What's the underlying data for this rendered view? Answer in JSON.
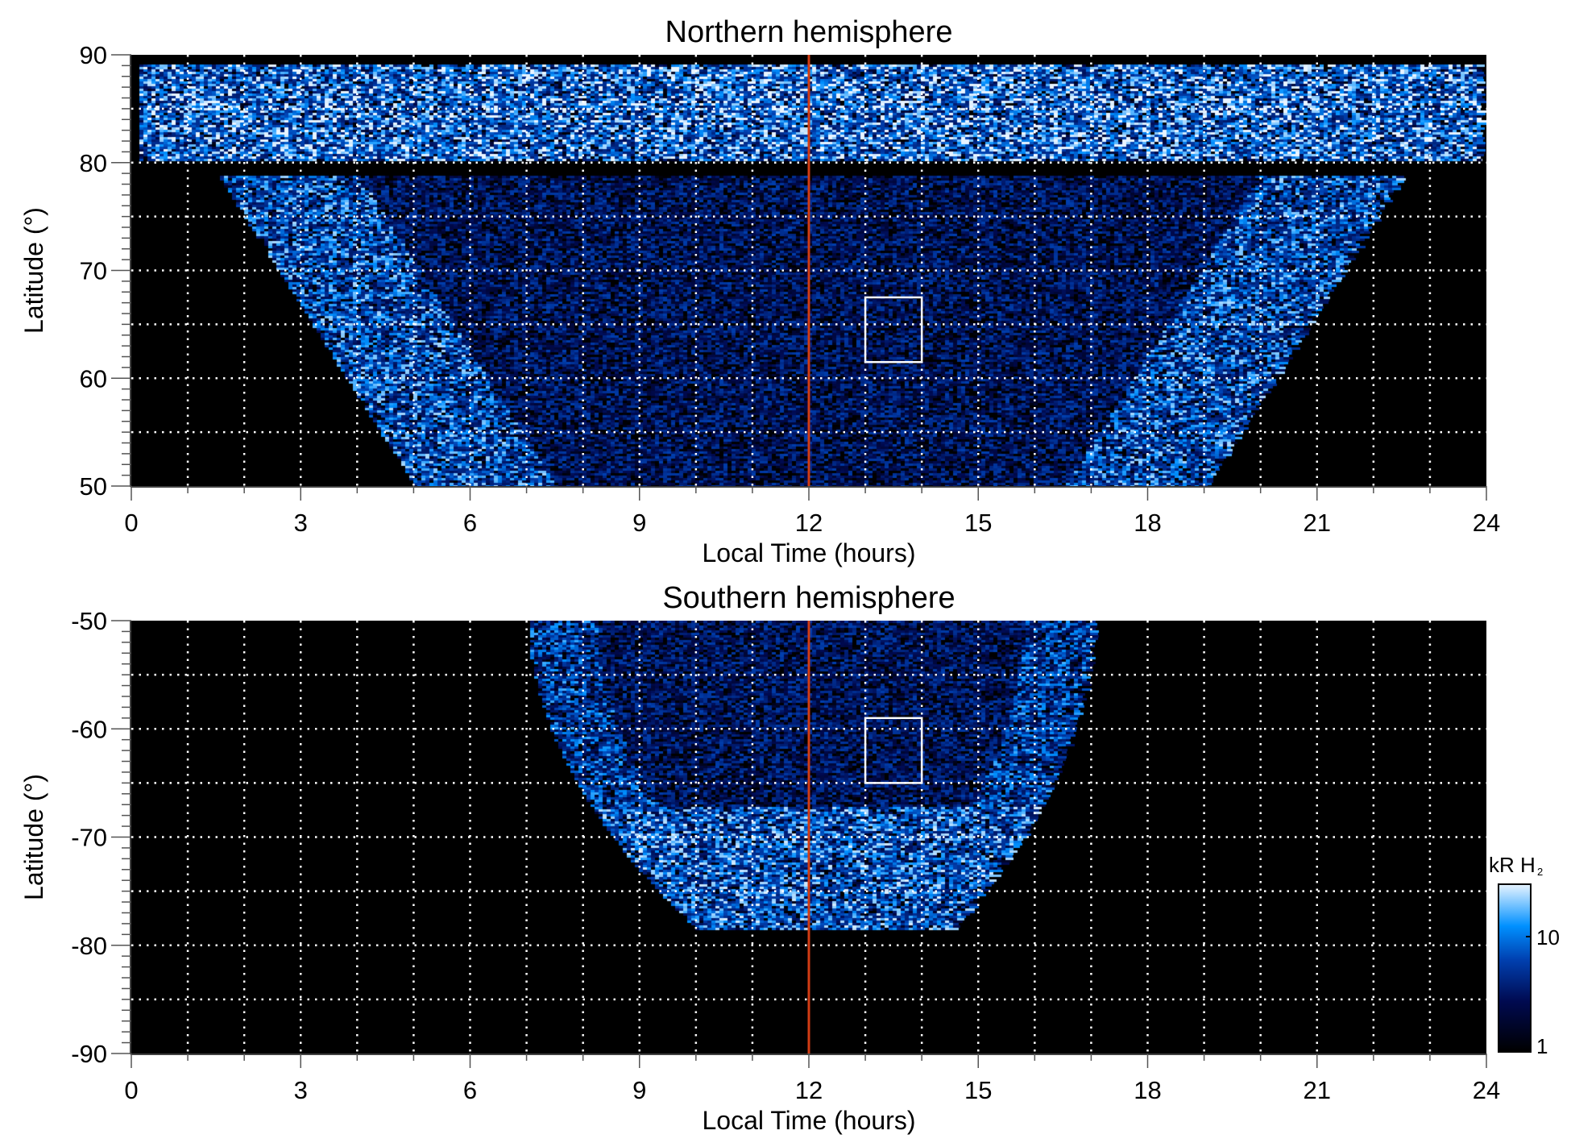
{
  "chart_data": [
    {
      "type": "heatmap",
      "title": "Northern hemisphere",
      "xlabel": "Local Time (hours)",
      "ylabel": "Latitude (°)",
      "xlim": [
        0,
        24
      ],
      "ylim": [
        50,
        90
      ],
      "xticks": [
        0,
        3,
        6,
        9,
        12,
        15,
        18,
        21,
        24
      ],
      "yticks": [
        50,
        60,
        70,
        80,
        90
      ],
      "grid": {
        "x_step_hours": 1,
        "y_step_deg": 5,
        "style": "dotted white"
      },
      "marker_line": {
        "x": 12,
        "color": "#d23c14"
      },
      "box": {
        "x": [
          13,
          14
        ],
        "y": [
          61.5,
          67.5
        ]
      }
    },
    {
      "type": "heatmap",
      "title": "Southern hemisphere",
      "xlabel": "Local Time (hours)",
      "ylabel": "Latitude (°)",
      "xlim": [
        0,
        24
      ],
      "ylim": [
        -90,
        -50
      ],
      "xticks": [
        0,
        3,
        6,
        9,
        12,
        15,
        18,
        21,
        24
      ],
      "yticks": [
        -90,
        -80,
        -70,
        -60,
        -50
      ],
      "grid": {
        "x_step_hours": 1,
        "y_step_deg": 5,
        "style": "dotted white"
      },
      "marker_line": {
        "x": 12,
        "color": "#d23c14"
      },
      "box": {
        "x": [
          13,
          14
        ],
        "y": [
          -65,
          -59
        ]
      }
    }
  ],
  "colorbar": {
    "label": "kR H",
    "label_sub": "2",
    "scale": "log",
    "range": [
      1,
      30
    ],
    "ticks": [
      "1",
      "10"
    ],
    "colors": [
      "#000000",
      "#000a50",
      "#0040b0",
      "#0090ff",
      "#e8f4ff"
    ]
  }
}
